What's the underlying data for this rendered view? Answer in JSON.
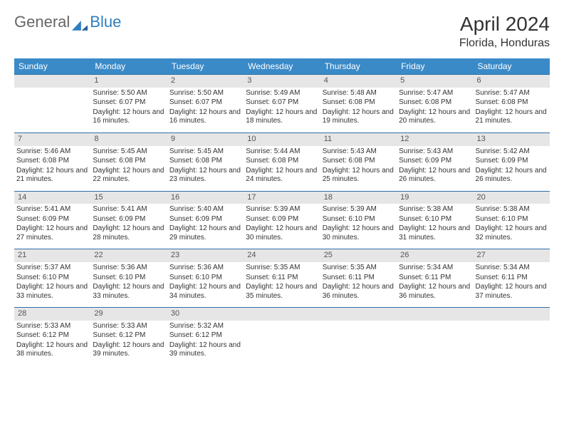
{
  "logo": {
    "part1": "General",
    "part2": "Blue"
  },
  "title": "April 2024",
  "location": "Florida, Honduras",
  "colors": {
    "header_bg": "#3a8ac8",
    "header_text": "#ffffff",
    "row_border": "#2f6fa8",
    "daynum_bg": "#e6e6e6",
    "logo_blue": "#2f7fbf",
    "text": "#333333"
  },
  "weekdays": [
    "Sunday",
    "Monday",
    "Tuesday",
    "Wednesday",
    "Thursday",
    "Friday",
    "Saturday"
  ],
  "weeks": [
    [
      null,
      {
        "n": 1,
        "sr": "5:50 AM",
        "ss": "6:07 PM",
        "dh": 12,
        "dm": 16
      },
      {
        "n": 2,
        "sr": "5:50 AM",
        "ss": "6:07 PM",
        "dh": 12,
        "dm": 16
      },
      {
        "n": 3,
        "sr": "5:49 AM",
        "ss": "6:07 PM",
        "dh": 12,
        "dm": 18
      },
      {
        "n": 4,
        "sr": "5:48 AM",
        "ss": "6:08 PM",
        "dh": 12,
        "dm": 19
      },
      {
        "n": 5,
        "sr": "5:47 AM",
        "ss": "6:08 PM",
        "dh": 12,
        "dm": 20
      },
      {
        "n": 6,
        "sr": "5:47 AM",
        "ss": "6:08 PM",
        "dh": 12,
        "dm": 21
      }
    ],
    [
      {
        "n": 7,
        "sr": "5:46 AM",
        "ss": "6:08 PM",
        "dh": 12,
        "dm": 21
      },
      {
        "n": 8,
        "sr": "5:45 AM",
        "ss": "6:08 PM",
        "dh": 12,
        "dm": 22
      },
      {
        "n": 9,
        "sr": "5:45 AM",
        "ss": "6:08 PM",
        "dh": 12,
        "dm": 23
      },
      {
        "n": 10,
        "sr": "5:44 AM",
        "ss": "6:08 PM",
        "dh": 12,
        "dm": 24
      },
      {
        "n": 11,
        "sr": "5:43 AM",
        "ss": "6:08 PM",
        "dh": 12,
        "dm": 25
      },
      {
        "n": 12,
        "sr": "5:43 AM",
        "ss": "6:09 PM",
        "dh": 12,
        "dm": 26
      },
      {
        "n": 13,
        "sr": "5:42 AM",
        "ss": "6:09 PM",
        "dh": 12,
        "dm": 26
      }
    ],
    [
      {
        "n": 14,
        "sr": "5:41 AM",
        "ss": "6:09 PM",
        "dh": 12,
        "dm": 27
      },
      {
        "n": 15,
        "sr": "5:41 AM",
        "ss": "6:09 PM",
        "dh": 12,
        "dm": 28
      },
      {
        "n": 16,
        "sr": "5:40 AM",
        "ss": "6:09 PM",
        "dh": 12,
        "dm": 29
      },
      {
        "n": 17,
        "sr": "5:39 AM",
        "ss": "6:09 PM",
        "dh": 12,
        "dm": 30
      },
      {
        "n": 18,
        "sr": "5:39 AM",
        "ss": "6:10 PM",
        "dh": 12,
        "dm": 30
      },
      {
        "n": 19,
        "sr": "5:38 AM",
        "ss": "6:10 PM",
        "dh": 12,
        "dm": 31
      },
      {
        "n": 20,
        "sr": "5:38 AM",
        "ss": "6:10 PM",
        "dh": 12,
        "dm": 32
      }
    ],
    [
      {
        "n": 21,
        "sr": "5:37 AM",
        "ss": "6:10 PM",
        "dh": 12,
        "dm": 33
      },
      {
        "n": 22,
        "sr": "5:36 AM",
        "ss": "6:10 PM",
        "dh": 12,
        "dm": 33
      },
      {
        "n": 23,
        "sr": "5:36 AM",
        "ss": "6:10 PM",
        "dh": 12,
        "dm": 34
      },
      {
        "n": 24,
        "sr": "5:35 AM",
        "ss": "6:11 PM",
        "dh": 12,
        "dm": 35
      },
      {
        "n": 25,
        "sr": "5:35 AM",
        "ss": "6:11 PM",
        "dh": 12,
        "dm": 36
      },
      {
        "n": 26,
        "sr": "5:34 AM",
        "ss": "6:11 PM",
        "dh": 12,
        "dm": 36
      },
      {
        "n": 27,
        "sr": "5:34 AM",
        "ss": "6:11 PM",
        "dh": 12,
        "dm": 37
      }
    ],
    [
      {
        "n": 28,
        "sr": "5:33 AM",
        "ss": "6:12 PM",
        "dh": 12,
        "dm": 38
      },
      {
        "n": 29,
        "sr": "5:33 AM",
        "ss": "6:12 PM",
        "dh": 12,
        "dm": 39
      },
      {
        "n": 30,
        "sr": "5:32 AM",
        "ss": "6:12 PM",
        "dh": 12,
        "dm": 39
      },
      null,
      null,
      null,
      null
    ]
  ],
  "labels": {
    "sunrise": "Sunrise:",
    "sunset": "Sunset:",
    "daylight": "Daylight:",
    "hours": "hours",
    "and": "and",
    "minutes": "minutes."
  }
}
